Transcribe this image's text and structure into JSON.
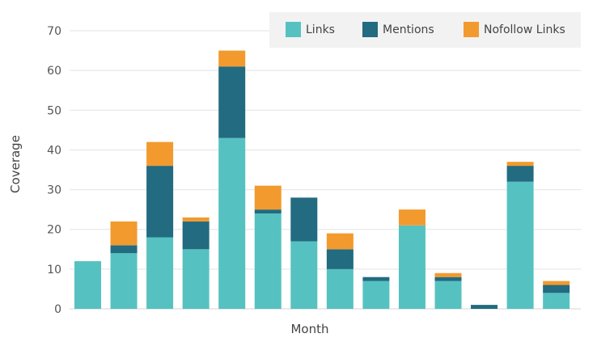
{
  "chart_data": {
    "type": "bar",
    "stacked": true,
    "title": "",
    "xlabel": "Month",
    "ylabel": "Coverage",
    "ylim": [
      0,
      70
    ],
    "yticks": [
      0,
      10,
      20,
      30,
      40,
      50,
      60,
      70
    ],
    "categories": [
      "",
      "",
      "",
      "",
      "",
      "",
      "",
      "",
      "",
      "",
      "",
      "",
      "",
      ""
    ],
    "series": [
      {
        "name": "Links",
        "color": "#55c2c1",
        "values": [
          12,
          14,
          18,
          15,
          43,
          24,
          17,
          10,
          7,
          21,
          7,
          0,
          32,
          4
        ]
      },
      {
        "name": "Mentions",
        "color": "#226b80",
        "values": [
          0,
          2,
          18,
          7,
          18,
          1,
          11,
          5,
          1,
          0,
          1,
          1,
          4,
          2
        ]
      },
      {
        "name": "Nofollow Links",
        "color": "#f29a2e",
        "values": [
          0,
          6,
          6,
          1,
          4,
          6,
          0,
          4,
          0,
          4,
          1,
          0,
          1,
          1
        ]
      }
    ],
    "grid": true,
    "legend_position": "top-right"
  }
}
